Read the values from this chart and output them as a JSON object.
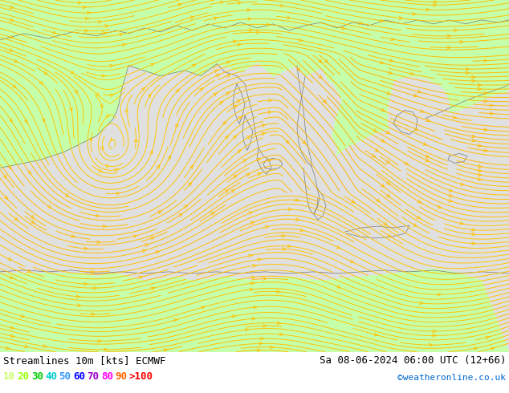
{
  "title_left": "Streamlines 10m [kts] ECMWF",
  "title_right": "Sa 08-06-2024 06:00 UTC (12+66)",
  "credit": "©weatheronline.co.uk",
  "legend_values": [
    "10",
    "20",
    "30",
    "40",
    "50",
    "60",
    "70",
    "80",
    "90",
    ">100"
  ],
  "legend_colors": [
    "#ccff66",
    "#99ff00",
    "#00cc00",
    "#00cccc",
    "#3399ff",
    "#0000ff",
    "#9900cc",
    "#ff00ff",
    "#ff6600",
    "#ff0000"
  ],
  "land_color": [
    0.8,
    1.0,
    0.7
  ],
  "sea_color": [
    0.85,
    0.85,
    0.85
  ],
  "bg_color": "#b3ffb3",
  "border_color": "#777777",
  "streamline_color_low": "#ffcc00",
  "streamline_color_high": "#44cc44",
  "fig_width": 6.34,
  "fig_height": 4.9,
  "dpi": 100,
  "title_fontsize": 9,
  "legend_fontsize": 9,
  "credit_fontsize": 8,
  "bottom_bar_color": "#ffffff"
}
